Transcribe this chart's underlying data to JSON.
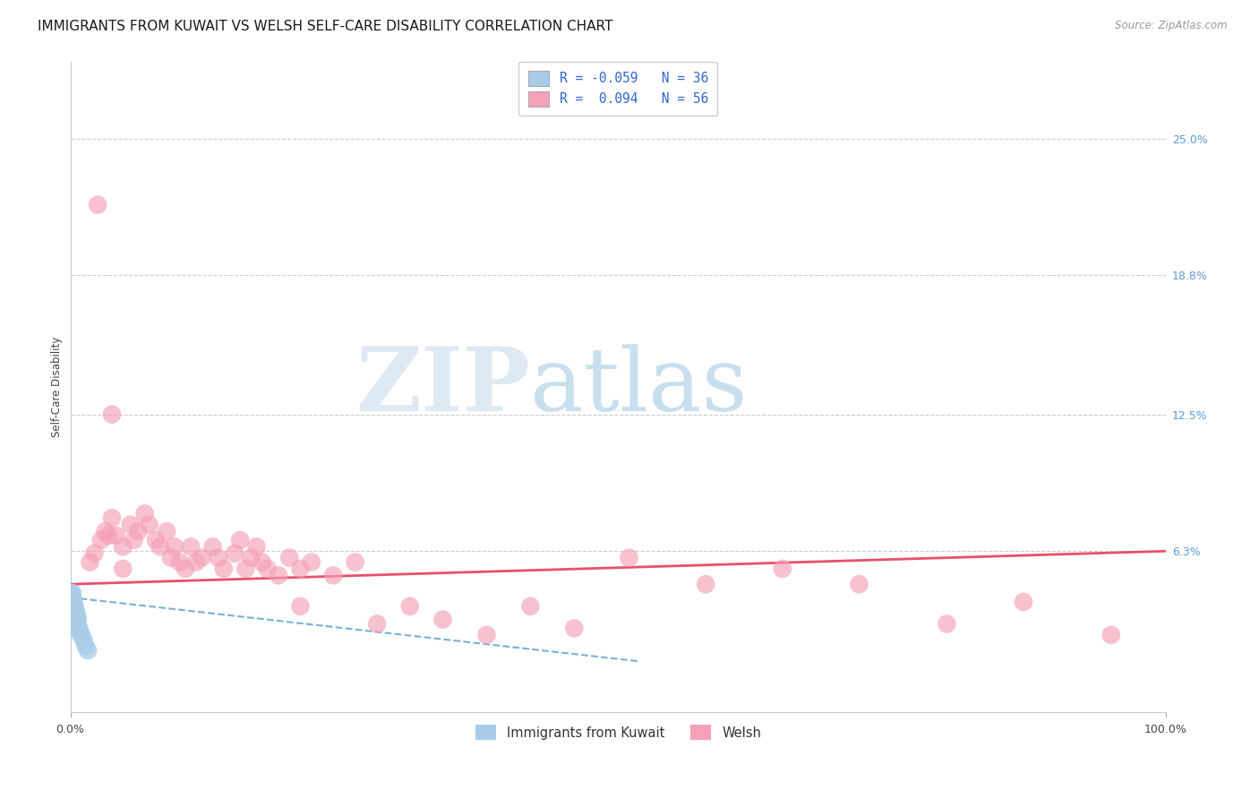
{
  "title": "IMMIGRANTS FROM KUWAIT VS WELSH SELF-CARE DISABILITY CORRELATION CHART",
  "source": "Source: ZipAtlas.com",
  "ylabel": "Self-Care Disability",
  "y_tick_vals_right": [
    0.063,
    0.125,
    0.188,
    0.25
  ],
  "y_tick_labels_right": [
    "6.3%",
    "12.5%",
    "18.8%",
    "25.0%"
  ],
  "xlim": [
    0.0,
    1.0
  ],
  "ylim": [
    -0.01,
    0.285
  ],
  "legend_label_1": "R = -0.059   N = 36",
  "legend_label_2": "R =  0.094   N = 56",
  "color_blue": "#a8cce8",
  "color_pink": "#f4a0b8",
  "line_color_blue": "#7ab0d4",
  "line_color_pink": "#e8506a",
  "watermark_zip": "ZIP",
  "watermark_atlas": "atlas",
  "bottom_legend_1": "Immigrants from Kuwait",
  "bottom_legend_2": "Welsh",
  "blue_line_x": [
    0.0,
    0.52
  ],
  "blue_line_y": [
    0.042,
    0.013
  ],
  "pink_line_x": [
    0.0,
    1.0
  ],
  "pink_line_y": [
    0.048,
    0.063
  ],
  "blue_pts_x": [
    0.001,
    0.001,
    0.001,
    0.001,
    0.001,
    0.001,
    0.001,
    0.002,
    0.002,
    0.002,
    0.002,
    0.002,
    0.002,
    0.002,
    0.002,
    0.003,
    0.003,
    0.003,
    0.003,
    0.003,
    0.004,
    0.004,
    0.004,
    0.005,
    0.005,
    0.005,
    0.006,
    0.006,
    0.007,
    0.007,
    0.008,
    0.009,
    0.01,
    0.012,
    0.014,
    0.016
  ],
  "blue_pts_y": [
    0.044,
    0.04,
    0.038,
    0.036,
    0.034,
    0.032,
    0.03,
    0.044,
    0.042,
    0.04,
    0.038,
    0.036,
    0.034,
    0.032,
    0.03,
    0.04,
    0.038,
    0.036,
    0.034,
    0.032,
    0.038,
    0.036,
    0.032,
    0.036,
    0.034,
    0.03,
    0.034,
    0.03,
    0.032,
    0.028,
    0.028,
    0.026,
    0.025,
    0.023,
    0.02,
    0.018
  ],
  "pink_pts_x": [
    0.025,
    0.038,
    0.018,
    0.022,
    0.028,
    0.032,
    0.038,
    0.042,
    0.048,
    0.055,
    0.058,
    0.062,
    0.068,
    0.072,
    0.078,
    0.082,
    0.088,
    0.092,
    0.095,
    0.1,
    0.105,
    0.11,
    0.115,
    0.12,
    0.13,
    0.135,
    0.14,
    0.15,
    0.155,
    0.16,
    0.165,
    0.17,
    0.175,
    0.18,
    0.19,
    0.2,
    0.21,
    0.22,
    0.24,
    0.26,
    0.28,
    0.31,
    0.34,
    0.38,
    0.42,
    0.46,
    0.51,
    0.58,
    0.65,
    0.72,
    0.8,
    0.87,
    0.95,
    0.035,
    0.048,
    0.21
  ],
  "pink_pts_y": [
    0.22,
    0.125,
    0.058,
    0.062,
    0.068,
    0.072,
    0.078,
    0.07,
    0.065,
    0.075,
    0.068,
    0.072,
    0.08,
    0.075,
    0.068,
    0.065,
    0.072,
    0.06,
    0.065,
    0.058,
    0.055,
    0.065,
    0.058,
    0.06,
    0.065,
    0.06,
    0.055,
    0.062,
    0.068,
    0.055,
    0.06,
    0.065,
    0.058,
    0.055,
    0.052,
    0.06,
    0.055,
    0.058,
    0.052,
    0.058,
    0.03,
    0.038,
    0.032,
    0.025,
    0.038,
    0.028,
    0.06,
    0.048,
    0.055,
    0.048,
    0.03,
    0.04,
    0.025,
    0.07,
    0.055,
    0.038
  ],
  "grid_color": "#cccccc",
  "background_color": "#ffffff",
  "title_fontsize": 11,
  "axis_label_fontsize": 8.5,
  "tick_fontsize": 9,
  "source_fontsize": 8.5
}
